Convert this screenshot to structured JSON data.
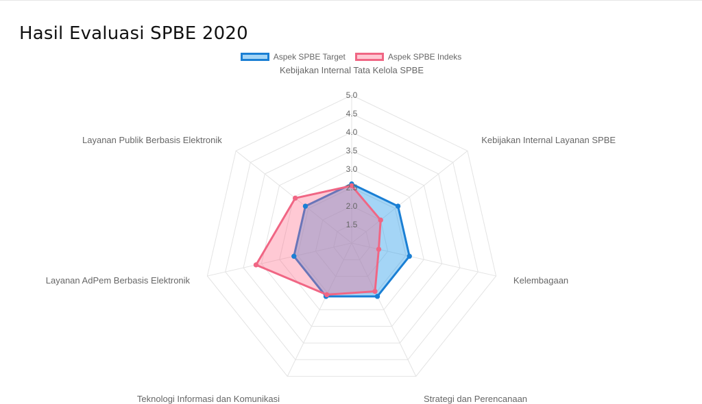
{
  "title": "Hasil Evaluasi SPBE 2020",
  "chart_data": {
    "type": "radar",
    "title": "Hasil Evaluasi SPBE 2020",
    "labels": [
      "Kebijakan Internal Tata Kelola SPBE",
      "Kebijakan Internal Layanan SPBE",
      "Kelembagaan",
      "Strategi dan Perencanaan",
      "Teknologi Informasi dan Komunikasi",
      "Layanan AdPem Berbasis Elektronik",
      "Layanan Publik Berbasis Elektronik"
    ],
    "ticks": [
      "1.5",
      "2.0",
      "2.5",
      "3.0",
      "3.5",
      "4.0",
      "4.5",
      "5.0"
    ],
    "tick_values": [
      1.5,
      2.0,
      2.5,
      3.0,
      3.5,
      4.0,
      4.5,
      5.0
    ],
    "rmin": 1.0,
    "rmax": 5.0,
    "legend_position": "top",
    "series": [
      {
        "name": "Aspek SPBE Target",
        "values": [
          2.6,
          2.6,
          2.6,
          2.6,
          2.6,
          2.6,
          2.6
        ],
        "border_color": "#1a7fd4",
        "fill_color": "rgba(54,162,235,0.45)"
      },
      {
        "name": "Aspek SPBE Indeks",
        "values": [
          2.55,
          2.0,
          1.75,
          2.45,
          2.55,
          3.65,
          2.95
        ],
        "border_color": "#f06684",
        "fill_color": "rgba(255,99,132,0.35)"
      }
    ]
  }
}
